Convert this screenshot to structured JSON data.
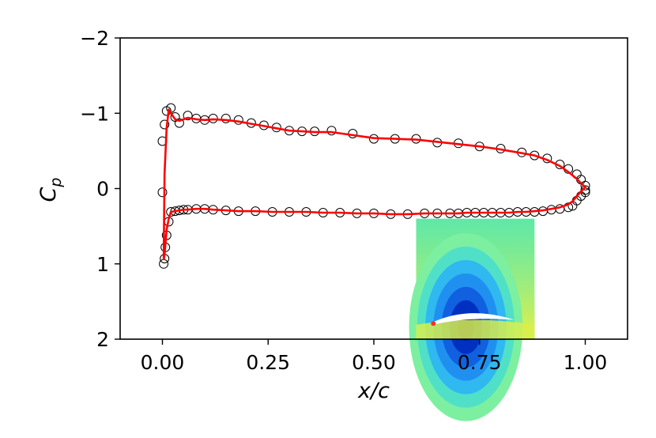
{
  "chart_data": {
    "type": "line",
    "title": "",
    "xlabel": "x/c",
    "ylabel": "C_p",
    "ylabel_base": "C",
    "ylabel_sub": "p",
    "xlim": [
      -0.1,
      1.1
    ],
    "ylim": [
      2,
      -2
    ],
    "y_inverted": true,
    "grid": false,
    "x_ticks": [
      0.0,
      0.25,
      0.5,
      0.75,
      1.0
    ],
    "x_tick_labels": [
      "0.00",
      "0.25",
      "0.50",
      "0.75",
      "1.00"
    ],
    "y_ticks": [
      -2,
      -1,
      0,
      1,
      2
    ],
    "y_tick_labels": [
      "−2",
      "−1",
      "0",
      "1",
      "2"
    ],
    "series": [
      {
        "name": "reference (circles)",
        "style": "open-circle",
        "color": "#000000",
        "x": [
          0.0,
          0.0,
          0.005,
          0.01,
          0.02,
          0.03,
          0.04,
          0.06,
          0.08,
          0.1,
          0.12,
          0.15,
          0.18,
          0.21,
          0.24,
          0.27,
          0.3,
          0.33,
          0.36,
          0.4,
          0.45,
          0.5,
          0.55,
          0.6,
          0.65,
          0.7,
          0.75,
          0.8,
          0.85,
          0.88,
          0.91,
          0.94,
          0.96,
          0.98,
          0.99,
          1.0,
          1.0,
          1.0,
          0.99,
          0.98,
          0.97,
          0.96,
          0.94,
          0.92,
          0.9,
          0.88,
          0.86,
          0.84,
          0.82,
          0.8,
          0.78,
          0.76,
          0.74,
          0.72,
          0.7,
          0.68,
          0.65,
          0.62,
          0.58,
          0.54,
          0.5,
          0.46,
          0.42,
          0.38,
          0.34,
          0.3,
          0.26,
          0.22,
          0.18,
          0.15,
          0.12,
          0.1,
          0.08,
          0.06,
          0.05,
          0.04,
          0.03,
          0.02,
          0.015,
          0.01,
          0.007,
          0.005,
          0.003
        ],
        "y": [
          0.05,
          -0.63,
          -0.85,
          -1.03,
          -1.07,
          -0.95,
          -0.87,
          -0.97,
          -0.93,
          -0.91,
          -0.93,
          -0.93,
          -0.91,
          -0.87,
          -0.84,
          -0.81,
          -0.77,
          -0.76,
          -0.76,
          -0.77,
          -0.73,
          -0.66,
          -0.66,
          -0.66,
          -0.61,
          -0.6,
          -0.56,
          -0.53,
          -0.48,
          -0.44,
          -0.4,
          -0.32,
          -0.26,
          -0.19,
          -0.12,
          -0.04,
          0.02,
          0.05,
          0.1,
          0.16,
          0.23,
          0.25,
          0.27,
          0.28,
          0.3,
          0.31,
          0.31,
          0.31,
          0.32,
          0.32,
          0.32,
          0.32,
          0.32,
          0.32,
          0.33,
          0.33,
          0.33,
          0.33,
          0.34,
          0.34,
          0.33,
          0.33,
          0.32,
          0.32,
          0.31,
          0.31,
          0.31,
          0.3,
          0.3,
          0.29,
          0.28,
          0.27,
          0.27,
          0.28,
          0.28,
          0.29,
          0.3,
          0.31,
          0.44,
          0.62,
          0.78,
          0.93,
          1.0
        ]
      },
      {
        "name": "prediction (red line)",
        "style": "line",
        "color": "#ff0000",
        "x": [
          0.003,
          0.005,
          0.01,
          0.015,
          0.02,
          0.03,
          0.04,
          0.06,
          0.08,
          0.1,
          0.12,
          0.15,
          0.18,
          0.21,
          0.24,
          0.27,
          0.3,
          0.33,
          0.36,
          0.4,
          0.45,
          0.5,
          0.55,
          0.6,
          0.65,
          0.7,
          0.75,
          0.8,
          0.85,
          0.88,
          0.91,
          0.94,
          0.96,
          0.98,
          0.99,
          1.0,
          0.99,
          0.98,
          0.97,
          0.96,
          0.94,
          0.92,
          0.9,
          0.88,
          0.86,
          0.84,
          0.82,
          0.8,
          0.78,
          0.76,
          0.74,
          0.72,
          0.7,
          0.68,
          0.65,
          0.62,
          0.58,
          0.54,
          0.5,
          0.46,
          0.42,
          0.38,
          0.34,
          0.3,
          0.26,
          0.22,
          0.18,
          0.15,
          0.12,
          0.1,
          0.08,
          0.06,
          0.05,
          0.04,
          0.03,
          0.02,
          0.015,
          0.01,
          0.007,
          0.005,
          0.003
        ],
        "y": [
          0.95,
          -0.2,
          -0.8,
          -1.05,
          -1.0,
          -0.92,
          -0.9,
          -0.94,
          -0.92,
          -0.91,
          -0.92,
          -0.91,
          -0.89,
          -0.86,
          -0.83,
          -0.8,
          -0.77,
          -0.76,
          -0.75,
          -0.75,
          -0.71,
          -0.67,
          -0.66,
          -0.65,
          -0.62,
          -0.59,
          -0.56,
          -0.52,
          -0.47,
          -0.44,
          -0.38,
          -0.3,
          -0.22,
          -0.13,
          -0.07,
          -0.02,
          0.04,
          0.1,
          0.17,
          0.21,
          0.25,
          0.27,
          0.29,
          0.3,
          0.31,
          0.31,
          0.32,
          0.32,
          0.32,
          0.32,
          0.32,
          0.32,
          0.33,
          0.33,
          0.33,
          0.33,
          0.34,
          0.34,
          0.33,
          0.33,
          0.32,
          0.32,
          0.31,
          0.31,
          0.31,
          0.3,
          0.3,
          0.29,
          0.28,
          0.27,
          0.27,
          0.28,
          0.28,
          0.29,
          0.3,
          0.31,
          0.4,
          0.55,
          0.75,
          0.88,
          0.95
        ]
      }
    ],
    "inset": {
      "type": "contour",
      "description_free": true,
      "x_range": [
        0.6,
        0.88
      ],
      "y_range": [
        0.4,
        2.0
      ],
      "field_colors": [
        "#ffff00",
        "#b8f06a",
        "#7cf0a0",
        "#50e0c8",
        "#30b8f0",
        "#2090f0",
        "#1060e0",
        "#0030c0",
        "#0010a0"
      ],
      "airfoil_color": "#ffffff",
      "stagnation_color": "#ff3020"
    }
  }
}
